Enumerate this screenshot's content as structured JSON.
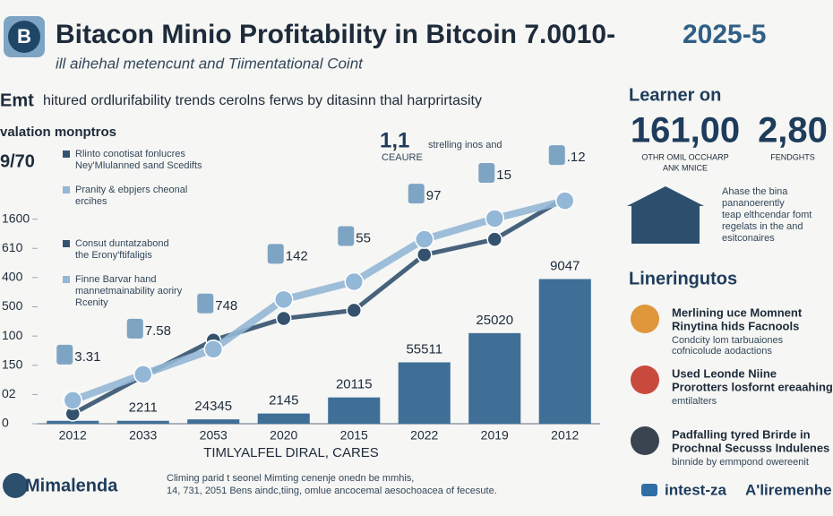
{
  "header": {
    "logo": "B",
    "title": "Bitacon Minio Profitability in Bitcoin 7.0010-",
    "title_tail": "2025-5",
    "subtitle": "ill aihehal metencunt and Tiimentational Coint"
  },
  "intro": {
    "lead": "Emt",
    "text": "hitured ordlurifability trends cerolns ferws by ditasinn thal harprirtasity"
  },
  "chart_data": {
    "type": "bar_line",
    "axis_title": "valation monptros",
    "axis_note": "9/70",
    "x_title": "TIMLYALFEL DIRAL, CARES",
    "categories": [
      "2012",
      "2033",
      "2053",
      "2020",
      "2015",
      "2022",
      "2019",
      "2012"
    ],
    "values": [
      0.1,
      0.1,
      0.15,
      0.35,
      0.9,
      2.1,
      3.1,
      4.95
    ],
    "bar_texts": [
      null,
      "2211",
      "24345",
      "2145",
      "20115",
      "55511",
      "25020",
      "9047"
    ],
    "color": "#3f6f97",
    "ylim": [
      0,
      8
    ],
    "yticks": [
      {
        "value": 0,
        "label": "0"
      },
      {
        "value": 1,
        "label": "02"
      },
      {
        "value": 2,
        "label": "150"
      },
      {
        "value": 3,
        "label": "100"
      },
      {
        "value": 4,
        "label": "500"
      },
      {
        "value": 5,
        "label": "400"
      },
      {
        "value": 6,
        "label": "610"
      },
      {
        "value": 7,
        "label": "1600"
      }
    ],
    "series": [
      {
        "color": "#34526e",
        "values": [
          0.34,
          1.63,
          2.86,
          3.6,
          3.88,
          5.78,
          6.31,
          7.72
        ]
      },
      {
        "color": "#93b7d6",
        "values": [
          0.8,
          1.69,
          2.55,
          4.25,
          4.86,
          6.31,
          7.02,
          7.63
        ],
        "point_texts": [
          "3.31",
          "7.58",
          "748",
          "142",
          "55",
          "97",
          "15",
          ".12"
        ]
      }
    ],
    "legend_notes": [
      [
        "Rlinto conotisat fonlucres",
        "Ney'Mlulanned sand Scedifts"
      ],
      [
        "Pranity & ebpjers cheonal",
        "ercihes"
      ],
      [
        "Consut duntatzabond",
        "the Erony'ftifaligis"
      ],
      [
        "Finne Barvar hand",
        "mannetmainability aoriry",
        "Rcenity"
      ]
    ],
    "callout": {
      "value": "1,1",
      "caption": "CEAURE",
      "text": "strelling inos and"
    }
  },
  "stats": {
    "heading": "Learner on",
    "items": [
      {
        "value": "161,00",
        "caption": [
          "OTHR OMIL OCCHARP",
          "ANK MNICE"
        ]
      },
      {
        "value": "2,80",
        "caption": [
          "FENDGHTS"
        ]
      }
    ],
    "note": [
      "Ahase the bina",
      "pananoerently",
      "teap elthcendar fomt",
      "regelats in the and",
      "esitconaires"
    ]
  },
  "list": {
    "heading": "Lineringutos",
    "items": [
      {
        "title": [
          "Merlining uce Momnent",
          "Rinytina hids Facnools"
        ],
        "text": [
          "Condcity lom tarbuaiones",
          "cofnicolude aodactions"
        ]
      },
      {
        "title": [
          "Used Leonde Niine",
          "Prorotters losfornt ereaahing"
        ],
        "text": [
          "emtilalters"
        ]
      },
      {
        "title": [
          "Padfalling tyred Brirde in",
          "Prochnal Secusss Indulenes"
        ],
        "text": [
          "binnide by emmpond owereenit"
        ]
      }
    ]
  },
  "footer": {
    "brand": "Mimalenda",
    "note": [
      "Climing parid t seonel Mimting cenenje onedn be mmhis,",
      "14, 731, 2051 Bens aindc,tiing, omlue ancocemal aesochoacea of fecesute."
    ],
    "social": "intest-za",
    "tag": "A'liremenhe"
  }
}
